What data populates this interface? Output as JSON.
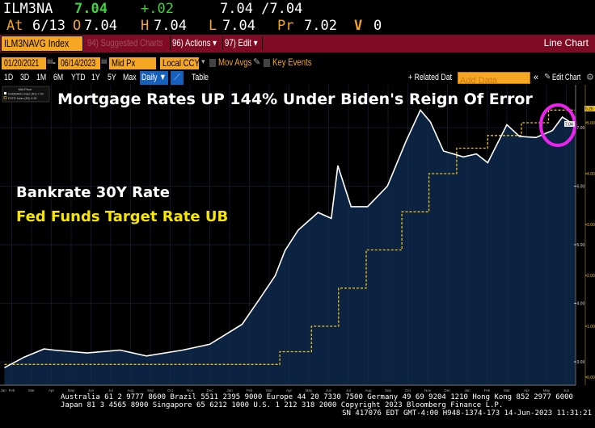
{
  "quote": {
    "ticker": "ILM3NA",
    "last": "7.04",
    "change": "+.02",
    "bid_ask": "7.04 /7.04",
    "at_label": "At",
    "date": "6/13",
    "open_label": "O",
    "open": "7.04",
    "high_label": "H",
    "high": "7.04",
    "low_label": "L",
    "low": "7.04",
    "prev_label": "Pr",
    "prev": "7.02",
    "vol_label": "V",
    "vol": "0"
  },
  "toolbar": {
    "security": "ILM3NAVG Index",
    "suggested": "94) Suggested Charts",
    "actions": "96) Actions ▾",
    "edit": "97) Edit ▾",
    "view": "Line Chart"
  },
  "controls": {
    "start_date": "01/20/2021",
    "dash": "-",
    "end_date": "06/14/2023",
    "field": "Mid Px",
    "currency": "Local CCY",
    "mov_avgs": "Mov Avgs",
    "key_events": "Key Events"
  },
  "periods": [
    "1D",
    "3D",
    "1M",
    "6M",
    "YTD",
    "1Y",
    "5Y",
    "Max"
  ],
  "frequency": "Daily ▼",
  "table_label": "Table",
  "related": "+ Related Dat",
  "add_data_placeholder": "Add Data",
  "collapse": "«",
  "edit_chart": "Edit Chart",
  "legend": {
    "title": "Mid Price",
    "s1": "ILM3NAVG Index (R1) 7.04",
    "s2": "FDTR Index (R2) 5.25"
  },
  "footer": {
    "line1": "Australia 61 2 9777 8600 Brazil 5511 2395 9000 Europe 44 20 7330 7500 Germany 49 69 9204 1210 Hong Kong 852 2977 6000",
    "line2": "Japan 81 3 4565 8900      Singapore 65 6212 1000      U.S. 1 212 318 2000       Copyright 2023 Bloomberg Finance L.P.",
    "line3": "SN 417076 EDT  GMT-4:00 H948-1374-173 14-Jun-2023 11:31:21"
  },
  "colors": {
    "area": "#0b2340",
    "fed": "#e8c020",
    "circle": "#ee22ee",
    "maroon": "#7f0c24",
    "orange": "#f5a623"
  },
  "chart_data": {
    "type": "line",
    "title": "Mortgage Rates UP 144% Under Biden's Reign Of Error",
    "annotations": [
      "Bankrate 30Y Rate",
      "Fed Funds Target Rate UB"
    ],
    "x_range": [
      "2021-01-20",
      "2023-06-14"
    ],
    "x_ticks": [
      "Jan",
      "Feb",
      "Mar",
      "Apr",
      "May",
      "Jun",
      "Jul",
      "Aug",
      "Sep",
      "Oct",
      "Nov",
      "Dec",
      "Jan",
      "Feb",
      "Mar",
      "Apr",
      "May",
      "Jun",
      "Jul",
      "Aug",
      "Sep",
      "Oct",
      "Nov",
      "Dec",
      "Jan",
      "Feb",
      "Mar",
      "Apr",
      "May",
      "Jun"
    ],
    "left_axis": {
      "ticks": [
        "3.00",
        "4.00",
        "5.00",
        "6.00",
        "7.00"
      ],
      "last": "7.04"
    },
    "right_axis": {
      "ticks": [
        "0.00",
        "1.00",
        "2.00",
        "3.00",
        "4.00",
        "5.00"
      ],
      "last": "5.25"
    },
    "series": [
      {
        "name": "Bankrate 30Y Rate (ILM3NAVG, R1)",
        "axis": "left",
        "points": [
          [
            "2021-01-20",
            2.9
          ],
          [
            "2021-02-20",
            3.08
          ],
          [
            "2021-03-20",
            3.22
          ],
          [
            "2021-04-05",
            3.2
          ],
          [
            "2021-05-25",
            3.15
          ],
          [
            "2021-07-15",
            3.2
          ],
          [
            "2021-08-25",
            3.1
          ],
          [
            "2021-10-20",
            3.2
          ],
          [
            "2021-12-01",
            3.3
          ],
          [
            "2022-01-20",
            3.64
          ],
          [
            "2022-02-15",
            4.05
          ],
          [
            "2022-03-10",
            4.47
          ],
          [
            "2022-03-25",
            4.9
          ],
          [
            "2022-04-15",
            5.25
          ],
          [
            "2022-05-15",
            5.55
          ],
          [
            "2022-06-05",
            5.45
          ],
          [
            "2022-06-15",
            6.35
          ],
          [
            "2022-07-05",
            5.65
          ],
          [
            "2022-07-30",
            5.65
          ],
          [
            "2022-08-30",
            6.0
          ],
          [
            "2022-09-28",
            6.76
          ],
          [
            "2022-10-20",
            7.3
          ],
          [
            "2022-11-05",
            7.1
          ],
          [
            "2022-11-25",
            6.6
          ],
          [
            "2022-12-25",
            6.5
          ],
          [
            "2023-01-15",
            6.55
          ],
          [
            "2023-02-02",
            6.4
          ],
          [
            "2023-03-01",
            7.05
          ],
          [
            "2023-03-20",
            6.85
          ],
          [
            "2023-04-15",
            6.83
          ],
          [
            "2023-05-10",
            6.95
          ],
          [
            "2023-05-25",
            7.18
          ],
          [
            "2023-06-14",
            7.04
          ]
        ]
      },
      {
        "name": "Fed Funds Target Rate UB (FDTR, R2)",
        "axis": "right",
        "step": true,
        "points": [
          [
            "2021-01-20",
            0.25
          ],
          [
            "2022-03-17",
            0.5
          ],
          [
            "2022-05-05",
            1.0
          ],
          [
            "2022-06-16",
            1.75
          ],
          [
            "2022-07-28",
            2.5
          ],
          [
            "2022-09-22",
            3.25
          ],
          [
            "2022-11-03",
            4.0
          ],
          [
            "2022-12-15",
            4.5
          ],
          [
            "2023-02-02",
            4.75
          ],
          [
            "2023-03-23",
            5.0
          ],
          [
            "2023-05-04",
            5.25
          ],
          [
            "2023-06-14",
            5.25
          ]
        ]
      }
    ]
  }
}
